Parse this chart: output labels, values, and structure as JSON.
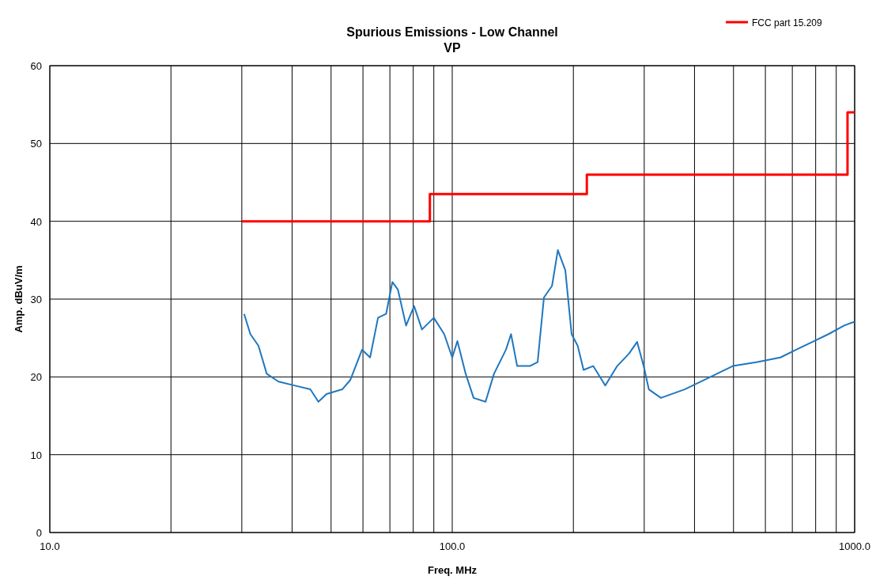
{
  "chart_data": {
    "type": "line",
    "title": "Spurious Emissions - Low Channel",
    "subtitle": "VP",
    "xlabel": "Freq. MHz",
    "ylabel": "Amp. dBuV/m",
    "log": "x",
    "grid": true,
    "legend": "top right",
    "xlim": [
      10,
      1000
    ],
    "ylim": [
      0,
      60
    ],
    "xticks": [
      {
        "value": 10,
        "label": "10.0"
      },
      {
        "value": 20,
        "label": null
      },
      {
        "value": 30,
        "label": null
      },
      {
        "value": 40,
        "label": null
      },
      {
        "value": 50,
        "label": null
      },
      {
        "value": 60,
        "label": null
      },
      {
        "value": 70,
        "label": null
      },
      {
        "value": 80,
        "label": null
      },
      {
        "value": 90,
        "label": null
      },
      {
        "value": 100,
        "label": "100.0"
      },
      {
        "value": 200,
        "label": null
      },
      {
        "value": 300,
        "label": null
      },
      {
        "value": 400,
        "label": null
      },
      {
        "value": 500,
        "label": null
      },
      {
        "value": 600,
        "label": null
      },
      {
        "value": 700,
        "label": null
      },
      {
        "value": 800,
        "label": null
      },
      {
        "value": 900,
        "label": null
      },
      {
        "value": 1000,
        "label": "1000.0"
      }
    ],
    "yticks": [
      0,
      10,
      20,
      30,
      40,
      50,
      60
    ],
    "series": [
      {
        "color": "#1f77c0",
        "x": [
          30.4,
          31.5,
          33,
          34.6,
          37,
          40.5,
          44.4,
          46.5,
          48.7,
          53.3,
          55.8,
          59.7,
          62.5,
          65.4,
          68.5,
          71,
          73.3,
          76.8,
          80.4,
          84.1,
          90,
          95.5,
          100,
          103,
          108,
          113,
          121,
          127,
          136,
          140,
          145,
          156,
          163,
          169,
          177,
          183,
          191,
          198,
          205,
          212,
          224,
          240,
          257,
          275,
          288,
          299,
          308,
          330,
          378,
          434,
          498,
          570,
          654,
          716,
          785,
          861,
          942,
          1000
        ],
        "values": [
          28.1,
          25.5,
          24,
          20.4,
          19.4,
          18.9,
          18.4,
          16.8,
          17.8,
          18.4,
          19.6,
          23.5,
          22.5,
          27.6,
          28.1,
          32.2,
          31.2,
          26.6,
          29.1,
          26.1,
          27.6,
          25.5,
          22.5,
          24.6,
          20.4,
          17.3,
          16.8,
          20.4,
          23.5,
          25.5,
          21.4,
          21.4,
          21.9,
          30.2,
          31.7,
          36.3,
          33.7,
          25.5,
          24,
          20.9,
          21.4,
          18.9,
          21.4,
          23,
          24.5,
          21.4,
          18.4,
          17.3,
          18.4,
          19.9,
          21.4,
          21.9,
          22.5,
          23.5,
          24.5,
          25.5,
          26.6,
          27.1
        ]
      },
      {
        "type": "step",
        "name": "FCC part 15.209",
        "color": "#ff0000",
        "x": [
          30,
          88,
          216,
          960,
          1000
        ],
        "values": [
          40,
          43.5,
          46,
          54,
          54
        ]
      }
    ]
  }
}
